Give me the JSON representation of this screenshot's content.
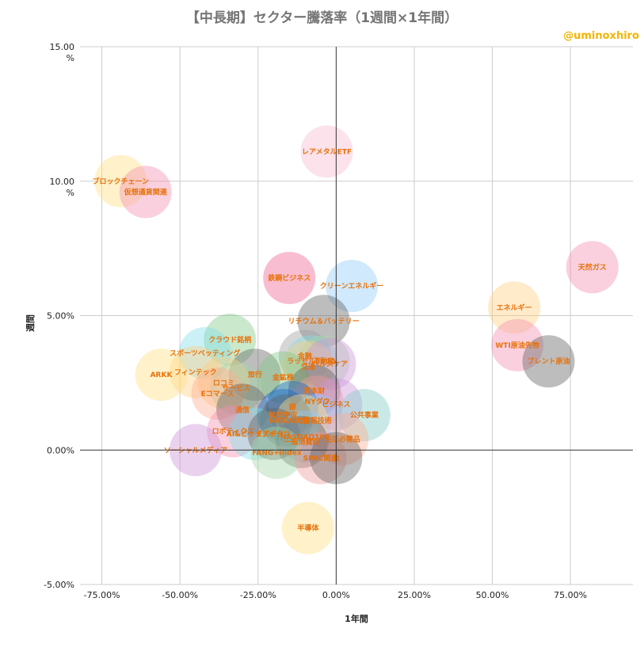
{
  "chart_data": {
    "type": "scatter",
    "title": "【中長期】セクター騰落率（1週間×1年間）",
    "credit": "@uminoxhiro",
    "xlabel": "1年間",
    "ylabel": "週間",
    "xlim": [
      -82,
      95
    ],
    "ylim": [
      -5,
      15
    ],
    "x_ticks": [
      "-75.00%",
      "-50.00%",
      "-25.00%",
      "0.00%",
      "25.00%",
      "50.00%",
      "75.00%"
    ],
    "x_tick_values": [
      -75,
      -50,
      -25,
      0,
      25,
      50,
      75
    ],
    "y_ticks": [
      "15.00\n%",
      "10.00\n%",
      "5.00%",
      "0.00%",
      "-5.00%"
    ],
    "y_tick_values": [
      15,
      10,
      5,
      0,
      -5
    ],
    "points": [
      {
        "label": "ブロックチェーン",
        "x": -69,
        "y": 10.0,
        "color": "#ffe082"
      },
      {
        "label": "仮想通貨関連",
        "x": -61,
        "y": 9.6,
        "color": "#f48fb1"
      },
      {
        "label": "レアメタルETF",
        "x": -3,
        "y": 11.1,
        "color": "#f8bbd0"
      },
      {
        "label": "天然ガス",
        "x": 82,
        "y": 6.8,
        "color": "#f48fb1"
      },
      {
        "label": "鉄鋼ビジネス",
        "x": -15,
        "y": 6.4,
        "color": "#f06292"
      },
      {
        "label": "クリーンエネルギー",
        "x": 5,
        "y": 6.1,
        "color": "#90caf9"
      },
      {
        "label": "エネルギー",
        "x": 57,
        "y": 5.3,
        "color": "#ffcc80"
      },
      {
        "label": "リチウム＆バッテリー",
        "x": -4,
        "y": 4.8,
        "color": "#616161"
      },
      {
        "label": "WTI原油先物",
        "x": 58,
        "y": 3.9,
        "color": "#f48fb1"
      },
      {
        "label": "ブレント原油",
        "x": 68,
        "y": 3.3,
        "color": "#616161"
      },
      {
        "label": "クラウド銘柄",
        "x": -34,
        "y": 4.1,
        "color": "#81c784"
      },
      {
        "label": "スポーツベッティング",
        "x": -42,
        "y": 3.6,
        "color": "#80deea"
      },
      {
        "label": "金融",
        "x": -10,
        "y": 3.5,
        "color": "#9e9e9e"
      },
      {
        "label": "ラッセル2000",
        "x": -8,
        "y": 3.3,
        "color": "#80deea"
      },
      {
        "label": "不動産",
        "x": -4,
        "y": 3.3,
        "color": "#a5d6a7"
      },
      {
        "label": "交通",
        "x": -9,
        "y": 3.1,
        "color": "#ffcc80"
      },
      {
        "label": "ヘルスケア",
        "x": -2,
        "y": 3.2,
        "color": "#ce93d8"
      },
      {
        "label": "フィンテック",
        "x": -45,
        "y": 2.9,
        "color": "#ffcc80"
      },
      {
        "label": "ARKK",
        "x": -56,
        "y": 2.8,
        "color": "#ffe082"
      },
      {
        "label": "旅行",
        "x": -26,
        "y": 2.8,
        "color": "#616161"
      },
      {
        "label": "金鉱株",
        "x": -17,
        "y": 2.7,
        "color": "#81c784"
      },
      {
        "label": "ロコミ",
        "x": -36,
        "y": 2.5,
        "color": "#ffcc80"
      },
      {
        "label": "サービス",
        "x": -32,
        "y": 2.3,
        "color": "#a5d6a7"
      },
      {
        "label": "Eコマース",
        "x": -38,
        "y": 2.1,
        "color": "#ffab91"
      },
      {
        "label": "資本財",
        "x": -7,
        "y": 2.2,
        "color": "#616161"
      },
      {
        "label": "NYダウ",
        "x": -6,
        "y": 1.8,
        "color": "#ef9a9a"
      },
      {
        "label": "ビジネス",
        "x": 0,
        "y": 1.7,
        "color": "#ce93d8"
      },
      {
        "label": "銀",
        "x": -14,
        "y": 1.6,
        "color": "#1565c0"
      },
      {
        "label": "通信",
        "x": -30,
        "y": 1.5,
        "color": "#616161"
      },
      {
        "label": "公共事業",
        "x": 9,
        "y": 1.3,
        "color": "#80cbc4"
      },
      {
        "label": "航空宇宙",
        "x": -17,
        "y": 1.3,
        "color": "#1565c0"
      },
      {
        "label": "情報技術",
        "x": -6,
        "y": 1.1,
        "color": "#90caf9"
      },
      {
        "label": "NASDAQ",
        "x": -16,
        "y": 1.1,
        "color": "#616161"
      },
      {
        "label": "大型",
        "x": -11,
        "y": 1.1,
        "color": "#ffe082"
      },
      {
        "label": "ロボティクス",
        "x": -33,
        "y": 0.7,
        "color": "#f48fb1"
      },
      {
        "label": "AI&ビッグデータ",
        "x": -26,
        "y": 0.6,
        "color": "#80deea"
      },
      {
        "label": "Eスポーツ",
        "x": -20,
        "y": 0.6,
        "color": "#616161"
      },
      {
        "label": "NASDAQ100",
        "x": -10,
        "y": 0.5,
        "color": "#90caf9"
      },
      {
        "label": "生活必需品",
        "x": 2,
        "y": 0.4,
        "color": "#ffab91"
      },
      {
        "label": "一般消費財",
        "x": -11,
        "y": 0.3,
        "color": "#616161"
      },
      {
        "label": "ソーシャルメディア",
        "x": -45,
        "y": 0.0,
        "color": "#ce93d8"
      },
      {
        "label": "FANG+index",
        "x": -19,
        "y": -0.1,
        "color": "#a5d6a7"
      },
      {
        "label": "SPAC関連",
        "x": -5,
        "y": -0.3,
        "color": "#ef9a9a"
      },
      {
        "label": "金",
        "x": 0,
        "y": -0.3,
        "color": "#616161"
      },
      {
        "label": "半導体",
        "x": -9,
        "y": -2.9,
        "color": "#ffe082"
      }
    ]
  }
}
